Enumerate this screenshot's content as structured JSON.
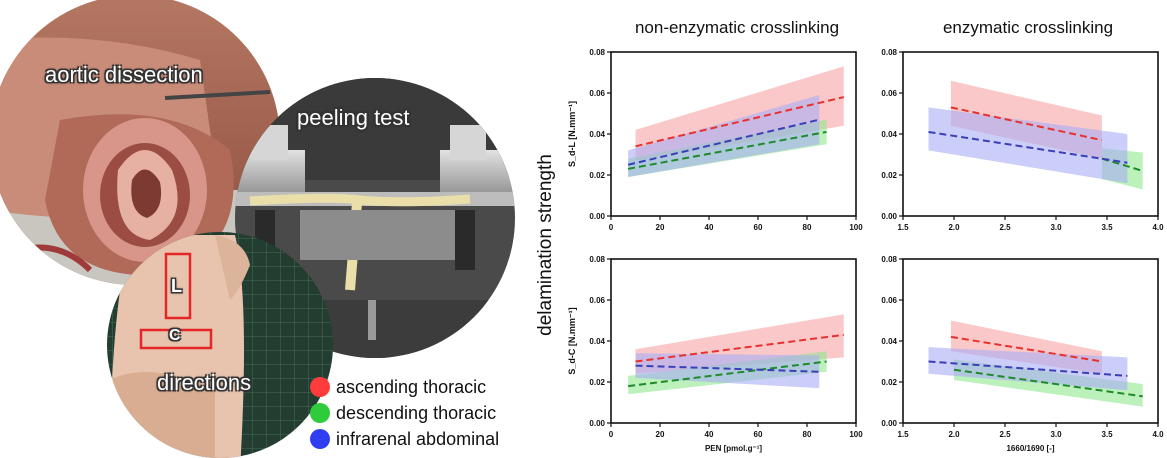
{
  "photos": {
    "dissection_label": "aortic dissection",
    "peeling_label": "peeling test",
    "directions_label": "directions",
    "direction_l": "L",
    "direction_c": "C"
  },
  "legend": [
    {
      "label": "ascending thoracic",
      "color": "#ff3b3b"
    },
    {
      "label": "descending thoracic",
      "color": "#2ecc3a"
    },
    {
      "label": "infrarenal abdominal",
      "color": "#2f3ff0"
    }
  ],
  "colors": {
    "ascending": "#e8312f",
    "descending": "#1f8a2a",
    "abdominal": "#3a3fb8",
    "ascending_band": "#f6a3a3",
    "descending_band": "#8fe88f",
    "abdominal_band": "#a9aef5"
  },
  "column_titles": [
    "non-enzymatic crosslinking",
    "enzymatic crosslinking"
  ],
  "ylabel_shared": "delamination strength",
  "chart_data": [
    {
      "type": "line",
      "panel": "top-left",
      "ylabel": "S_d-L [N.mm⁻¹]",
      "xlabel": "",
      "xlim": [
        0,
        100
      ],
      "ylim": [
        0,
        0.08
      ],
      "xticks": [
        "0",
        "20",
        "40",
        "60",
        "80",
        "100"
      ],
      "yticks": [
        "0.00",
        "0.02",
        "0.04",
        "0.06",
        "0.08"
      ],
      "series": [
        {
          "x": [
            10,
            95
          ],
          "y": [
            0.034,
            0.058
          ],
          "band_lower": [
            0.027,
            0.044
          ],
          "band_upper": [
            0.042,
            0.073
          ]
        },
        {
          "x": [
            7,
            88
          ],
          "y": [
            0.023,
            0.041
          ],
          "band_lower": [
            0.019,
            0.035
          ],
          "band_upper": [
            0.028,
            0.047
          ]
        },
        {
          "x": [
            7,
            85
          ],
          "y": [
            0.025,
            0.047
          ],
          "band_lower": [
            0.019,
            0.035
          ],
          "band_upper": [
            0.032,
            0.059
          ]
        }
      ]
    },
    {
      "type": "line",
      "panel": "top-right",
      "ylabel": "",
      "xlabel": "",
      "xlim": [
        1.5,
        4.0
      ],
      "ylim": [
        0,
        0.08
      ],
      "xticks": [
        "1.5",
        "2.0",
        "2.5",
        "3.0",
        "3.5",
        "4.0"
      ],
      "yticks": [
        "0.00",
        "0.02",
        "0.04",
        "0.06",
        "0.08"
      ],
      "series": [
        {
          "x": [
            1.97,
            3.45
          ],
          "y": [
            0.053,
            0.037
          ],
          "band_lower": [
            0.044,
            0.028
          ],
          "band_upper": [
            0.066,
            0.049
          ]
        },
        {
          "x": [
            3.45,
            3.85
          ],
          "y": [
            0.028,
            0.022
          ],
          "band_lower": [
            0.018,
            0.013
          ],
          "band_upper": [
            0.033,
            0.031
          ]
        },
        {
          "x": [
            1.75,
            3.7
          ],
          "y": [
            0.041,
            0.026
          ],
          "band_lower": [
            0.032,
            0.016
          ],
          "band_upper": [
            0.053,
            0.04
          ]
        }
      ]
    },
    {
      "type": "line",
      "panel": "bottom-left",
      "ylabel": "S_d-C [N.mm⁻¹]",
      "xlabel": "PEN [pmol.g⁻¹]",
      "xlim": [
        0,
        100
      ],
      "ylim": [
        0,
        0.08
      ],
      "xticks": [
        "0",
        "20",
        "40",
        "60",
        "80",
        "100"
      ],
      "yticks": [
        "0.00",
        "0.02",
        "0.04",
        "0.06",
        "0.08"
      ],
      "series": [
        {
          "x": [
            10,
            95
          ],
          "y": [
            0.03,
            0.043
          ],
          "band_lower": [
            0.024,
            0.032
          ],
          "band_upper": [
            0.036,
            0.053
          ]
        },
        {
          "x": [
            7,
            88
          ],
          "y": [
            0.018,
            0.03
          ],
          "band_lower": [
            0.014,
            0.025
          ],
          "band_upper": [
            0.023,
            0.035
          ]
        },
        {
          "x": [
            10,
            85
          ],
          "y": [
            0.028,
            0.025
          ],
          "band_lower": [
            0.022,
            0.017
          ],
          "band_upper": [
            0.034,
            0.033
          ]
        }
      ]
    },
    {
      "type": "line",
      "panel": "bottom-right",
      "ylabel": "",
      "xlabel": "1660/1690 [-]",
      "xlim": [
        1.5,
        4.0
      ],
      "ylim": [
        0,
        0.08
      ],
      "xticks": [
        "1.5",
        "2.0",
        "2.5",
        "3.0",
        "3.5",
        "4.0"
      ],
      "yticks": [
        "0.00",
        "0.02",
        "0.04",
        "0.06",
        "0.08"
      ],
      "series": [
        {
          "x": [
            1.97,
            3.45
          ],
          "y": [
            0.042,
            0.03
          ],
          "band_lower": [
            0.035,
            0.024
          ],
          "band_upper": [
            0.05,
            0.035
          ]
        },
        {
          "x": [
            2.0,
            3.85
          ],
          "y": [
            0.026,
            0.013
          ],
          "band_lower": [
            0.021,
            0.008
          ],
          "band_upper": [
            0.031,
            0.019
          ]
        },
        {
          "x": [
            1.75,
            3.7
          ],
          "y": [
            0.03,
            0.023
          ],
          "band_lower": [
            0.024,
            0.016
          ],
          "band_upper": [
            0.037,
            0.032
          ]
        }
      ]
    }
  ]
}
